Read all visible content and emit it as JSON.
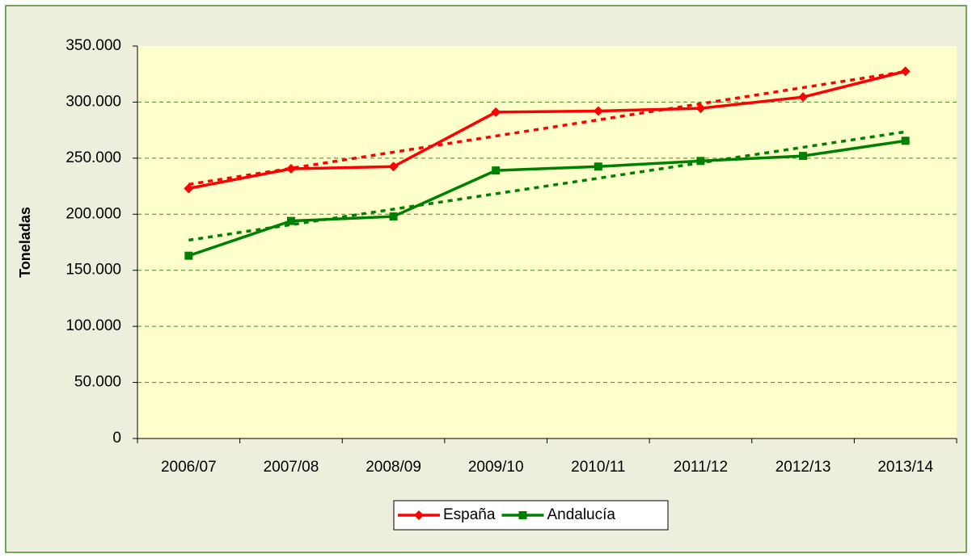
{
  "chart_data": {
    "type": "line",
    "y_label": "Toneladas",
    "categories": [
      "2006/07",
      "2007/08",
      "2008/09",
      "2009/10",
      "2010/11",
      "2011/12",
      "2012/13",
      "2013/14"
    ],
    "series": [
      {
        "name": "España",
        "color": "#ff0000",
        "marker": "diamond",
        "values": [
          223000,
          240500,
          242500,
          291000,
          292000,
          294500,
          304500,
          327500
        ]
      },
      {
        "name": "Andalucía",
        "color": "#008000",
        "marker": "square",
        "values": [
          163000,
          194000,
          198000,
          239000,
          242500,
          247500,
          252000,
          265500
        ]
      }
    ],
    "ylim": [
      0,
      350000
    ],
    "yticks": [
      0,
      {
        "value": 50000,
        "label": "50.000"
      },
      {
        "value": 100000,
        "label": "100.000"
      },
      {
        "value": 150000,
        "label": "150.000"
      },
      {
        "value": 200000,
        "label": "200.000"
      },
      {
        "value": 250000,
        "label": "250.000"
      },
      {
        "value": 300000,
        "label": "300.000"
      },
      {
        "value": 350000,
        "label": "350.000"
      }
    ],
    "grid": true,
    "trendline": true,
    "legend": "bottom"
  }
}
